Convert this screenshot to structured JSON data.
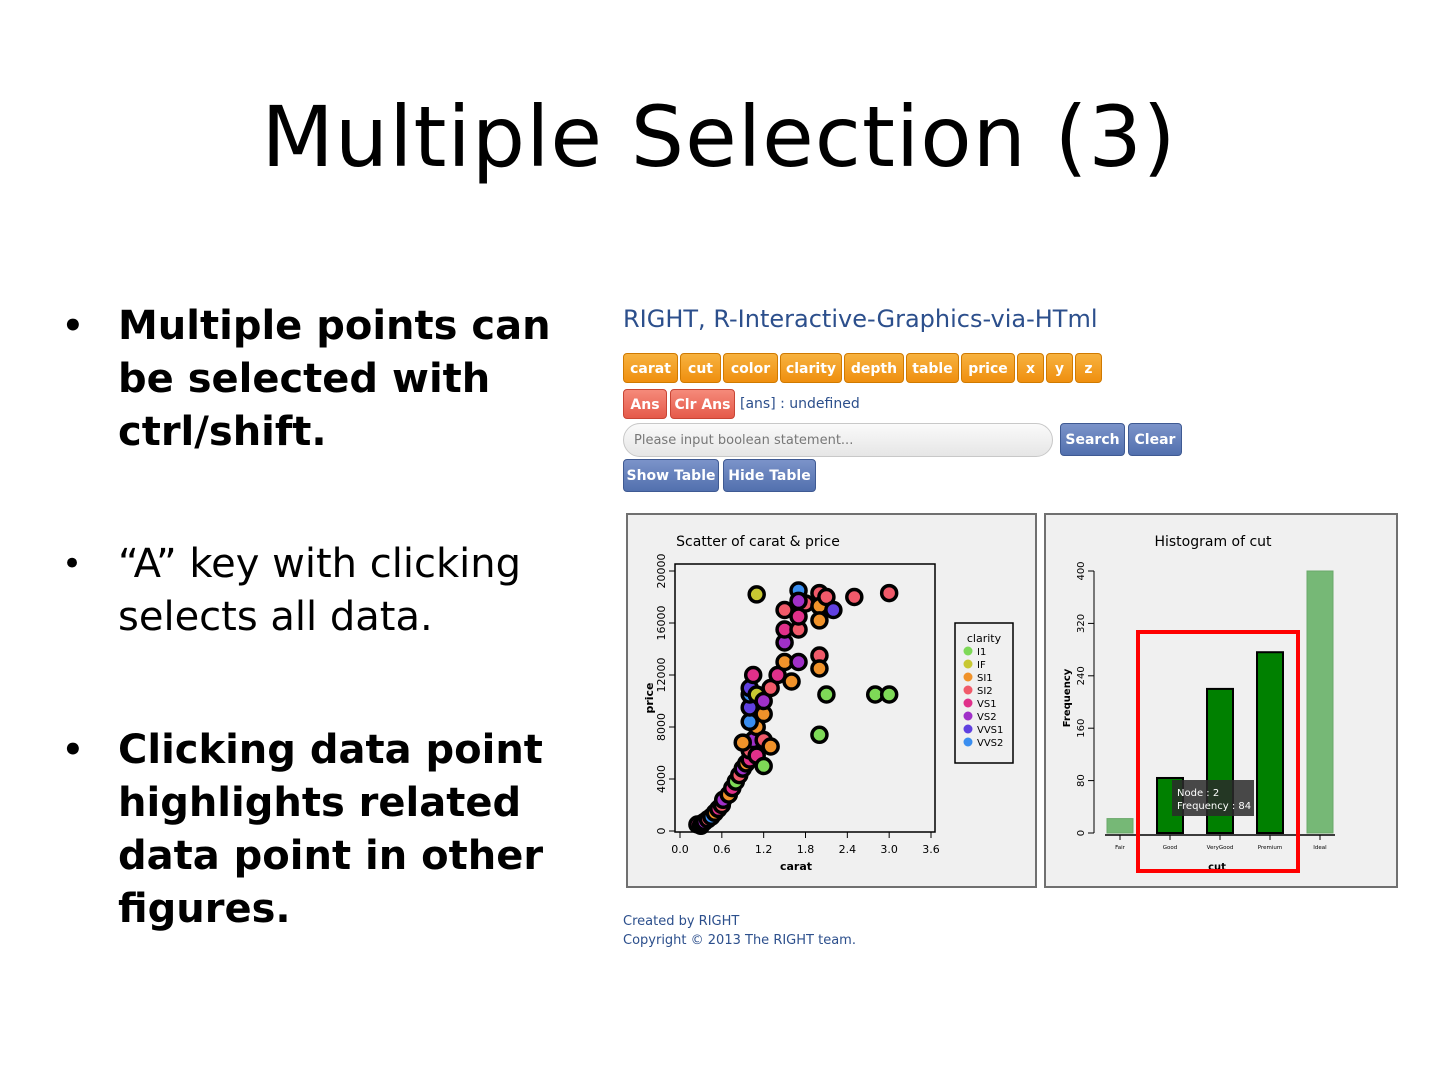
{
  "slide": {
    "title": "Multiple Selection (3)",
    "bullets": [
      "Multiple points can be selected with ctrl/shift.",
      "“A” key with clicking selects all data.",
      "Clicking data point highlights related data point in other figures."
    ]
  },
  "app": {
    "title": "RIGHT, R-Interactive-Graphics-via-HTml",
    "variable_buttons": [
      "carat",
      "cut",
      "color",
      "clarity",
      "depth",
      "table",
      "price",
      "x",
      "y",
      "z"
    ],
    "ans_button": "Ans",
    "clr_ans_button": "Clr Ans",
    "ans_status": "[ans] : undefined",
    "search_placeholder": "Please input boolean statement...",
    "search_button": "Search",
    "clear_button": "Clear",
    "show_table_button": "Show Table",
    "hide_table_button": "Hide Table",
    "footer_line1": "Created by RIGHT",
    "footer_line2": "Copyright © 2013 The RIGHT team.",
    "colors": {
      "title_blue": "#2c4f8c",
      "orange": "#f0921a",
      "red": "#e8604f",
      "blue": "#5b77b3",
      "highlight": "#ff0000"
    }
  },
  "chart_data": [
    {
      "type": "scatter",
      "title": "Scatter of carat & price",
      "xlabel": "carat",
      "ylabel": "price",
      "xlim": [
        0.0,
        3.6
      ],
      "ylim": [
        0,
        20000
      ],
      "xticks": [
        "0.0",
        "0.6",
        "1.2",
        "1.8",
        "2.4",
        "3.0",
        "3.6"
      ],
      "yticks": [
        "0",
        "4000",
        "8000",
        "12000",
        "16000",
        "20000"
      ],
      "legend": {
        "title": "clarity",
        "placement": "right",
        "entries": [
          {
            "label": "I1",
            "color": "#7ed957"
          },
          {
            "label": "IF",
            "color": "#c8c832"
          },
          {
            "label": "SI1",
            "color": "#f0922a"
          },
          {
            "label": "SI2",
            "color": "#f05a6a"
          },
          {
            "label": "VS1",
            "color": "#e0308a"
          },
          {
            "label": "VS2",
            "color": "#a030c8"
          },
          {
            "label": "VVS1",
            "color": "#6040e0"
          },
          {
            "label": "VVS2",
            "color": "#3a8ef0"
          }
        ]
      },
      "points": [
        [
          0.25,
          500,
          "VS1"
        ],
        [
          0.3,
          400,
          "VVS1"
        ],
        [
          0.32,
          600,
          "SI1"
        ],
        [
          0.35,
          700,
          "VS2"
        ],
        [
          0.4,
          900,
          "SI2"
        ],
        [
          0.45,
          1100,
          "VVS2"
        ],
        [
          0.5,
          1400,
          "SI1"
        ],
        [
          0.55,
          1700,
          "VS1"
        ],
        [
          0.6,
          2000,
          "SI2"
        ],
        [
          0.62,
          2400,
          "VS2"
        ],
        [
          0.7,
          2800,
          "SI1"
        ],
        [
          0.75,
          3300,
          "VS1"
        ],
        [
          0.8,
          3800,
          "I1"
        ],
        [
          0.85,
          4300,
          "SI2"
        ],
        [
          0.9,
          4800,
          "VS2"
        ],
        [
          0.95,
          5200,
          "SI1"
        ],
        [
          1.0,
          5500,
          "VS1"
        ],
        [
          1.0,
          6200,
          "SI2"
        ],
        [
          1.05,
          7000,
          "VS2"
        ],
        [
          1.1,
          8000,
          "SI1"
        ],
        [
          1.0,
          8400,
          "VVS2"
        ],
        [
          1.0,
          9500,
          "VVS1"
        ],
        [
          1.0,
          10500,
          "VVS2"
        ],
        [
          1.0,
          11000,
          "VVS1"
        ],
        [
          1.05,
          12000,
          "VS1"
        ],
        [
          1.1,
          10500,
          "IF"
        ],
        [
          1.2,
          9000,
          "SI1"
        ],
        [
          1.2,
          10000,
          "VS2"
        ],
        [
          1.3,
          11000,
          "SI2"
        ],
        [
          1.4,
          12000,
          "VS1"
        ],
        [
          1.5,
          13000,
          "SI1"
        ],
        [
          1.5,
          14500,
          "VS2"
        ],
        [
          1.5,
          15500,
          "VS1"
        ],
        [
          1.5,
          17000,
          "SI2"
        ],
        [
          1.6,
          11500,
          "SI1"
        ],
        [
          1.7,
          13000,
          "VS2"
        ],
        [
          1.7,
          15500,
          "SI2"
        ],
        [
          1.7,
          16500,
          "VS1"
        ],
        [
          1.8,
          17500,
          "SI2"
        ],
        [
          1.7,
          18500,
          "VVS2"
        ],
        [
          1.7,
          17700,
          "VS2"
        ],
        [
          2.0,
          18300,
          "SI2"
        ],
        [
          2.0,
          17300,
          "SI1"
        ],
        [
          2.0,
          16200,
          "SI1"
        ],
        [
          2.1,
          18000,
          "SI2"
        ],
        [
          2.2,
          17000,
          "VVS1"
        ],
        [
          2.0,
          13500,
          "SI2"
        ],
        [
          2.0,
          12500,
          "SI1"
        ],
        [
          2.1,
          10500,
          "I1"
        ],
        [
          2.0,
          7400,
          "I1"
        ],
        [
          2.5,
          18000,
          "SI2"
        ],
        [
          3.0,
          18300,
          "SI2"
        ],
        [
          2.8,
          10500,
          "I1"
        ],
        [
          3.0,
          10500,
          "I1"
        ],
        [
          1.1,
          18200,
          "IF"
        ],
        [
          1.2,
          7000,
          "SI2"
        ],
        [
          0.9,
          6800,
          "SI1"
        ],
        [
          1.3,
          6500,
          "SI1"
        ],
        [
          1.1,
          5800,
          "VS1"
        ],
        [
          1.2,
          5000,
          "I1"
        ]
      ]
    },
    {
      "type": "bar",
      "title": "Histogram of cut",
      "xlabel": "cut",
      "ylabel": "Frequency",
      "categories": [
        "Fair",
        "Good",
        "VeryGood",
        "Premium",
        "Ideal"
      ],
      "values": [
        22,
        84,
        220,
        276,
        400
      ],
      "ylim": [
        0,
        400
      ],
      "yticks": [
        "0",
        "80",
        "160",
        "240",
        "320",
        "400"
      ],
      "highlighted": [
        "Good",
        "VeryGood",
        "Premium"
      ],
      "tooltip": {
        "line1": "Node : 2",
        "line2": "Frequency : 84"
      }
    }
  ]
}
